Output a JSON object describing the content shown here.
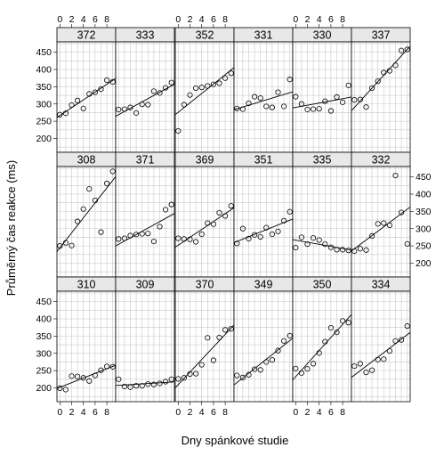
{
  "chart_data": {
    "type": "scatter",
    "xlabel": "Dny spánkové studie",
    "ylabel": "Průměrný čas reakce (ms)",
    "xlim": [
      -0.5,
      9.5
    ],
    "ylim": [
      160,
      480
    ],
    "x_ticks": [
      "0",
      "2",
      "4",
      "6",
      "8"
    ],
    "x_tick_values": [
      0,
      2,
      4,
      6,
      8
    ],
    "y_ticks": [
      "200",
      "250",
      "300",
      "350",
      "400",
      "450"
    ],
    "y_tick_values": [
      200,
      250,
      300,
      350,
      400,
      450
    ],
    "grid": true,
    "fit_lines": true,
    "x": [
      0,
      1,
      2,
      3,
      4,
      5,
      6,
      7,
      8,
      9
    ],
    "panels": [
      {
        "label": "372",
        "values": [
          269,
          273,
          297,
          310,
          287,
          329,
          334,
          343,
          369,
          364
        ]
      },
      {
        "label": "333",
        "values": [
          284,
          285,
          290,
          274,
          299,
          298,
          337,
          332,
          347,
          362
        ]
      },
      {
        "label": "352",
        "values": [
          222,
          298,
          326,
          346,
          348,
          352,
          357,
          360,
          375,
          389
        ]
      },
      {
        "label": "331",
        "values": [
          287,
          285,
          302,
          321,
          317,
          293,
          290,
          334,
          293,
          371
        ]
      },
      {
        "label": "330",
        "values": [
          321,
          300,
          284,
          285,
          286,
          308,
          280,
          320,
          305,
          354
        ]
      },
      {
        "label": "337",
        "values": [
          312,
          313,
          291,
          346,
          366,
          391,
          396,
          412,
          455,
          458
        ]
      },
      {
        "label": "308",
        "values": [
          250,
          259,
          251,
          321,
          357,
          415,
          382,
          290,
          431,
          466
        ]
      },
      {
        "label": "371",
        "values": [
          270,
          272,
          280,
          283,
          285,
          286,
          263,
          306,
          355,
          370
        ]
      },
      {
        "label": "369",
        "values": [
          272,
          270,
          269,
          262,
          284,
          316,
          313,
          346,
          337,
          366
        ]
      },
      {
        "label": "351",
        "values": [
          257,
          300,
          271,
          282,
          276,
          303,
          284,
          292,
          323,
          349
        ]
      },
      {
        "label": "335",
        "values": [
          245,
          275,
          255,
          273,
          267,
          255,
          246,
          239,
          239,
          237
        ]
      },
      {
        "label": "332",
        "values": [
          235,
          242,
          238,
          279,
          314,
          316,
          310,
          454,
          347,
          256
        ]
      },
      {
        "label": "310",
        "values": [
          199,
          195,
          234,
          233,
          229,
          220,
          236,
          251,
          262,
          261
        ]
      },
      {
        "label": "309",
        "values": [
          225,
          204,
          202,
          206,
          206,
          211,
          210,
          213,
          218,
          225
        ]
      },
      {
        "label": "370",
        "values": [
          226,
          229,
          240,
          241,
          267,
          345,
          280,
          346,
          368,
          371
        ]
      },
      {
        "label": "349",
        "values": [
          236,
          230,
          238,
          254,
          252,
          275,
          281,
          308,
          336,
          351
        ]
      },
      {
        "label": "350",
        "values": [
          256,
          243,
          255,
          270,
          301,
          334,
          374,
          361,
          394,
          389
        ]
      },
      {
        "label": "334",
        "values": [
          263,
          270,
          245,
          251,
          282,
          283,
          307,
          336,
          339,
          379
        ]
      }
    ]
  }
}
